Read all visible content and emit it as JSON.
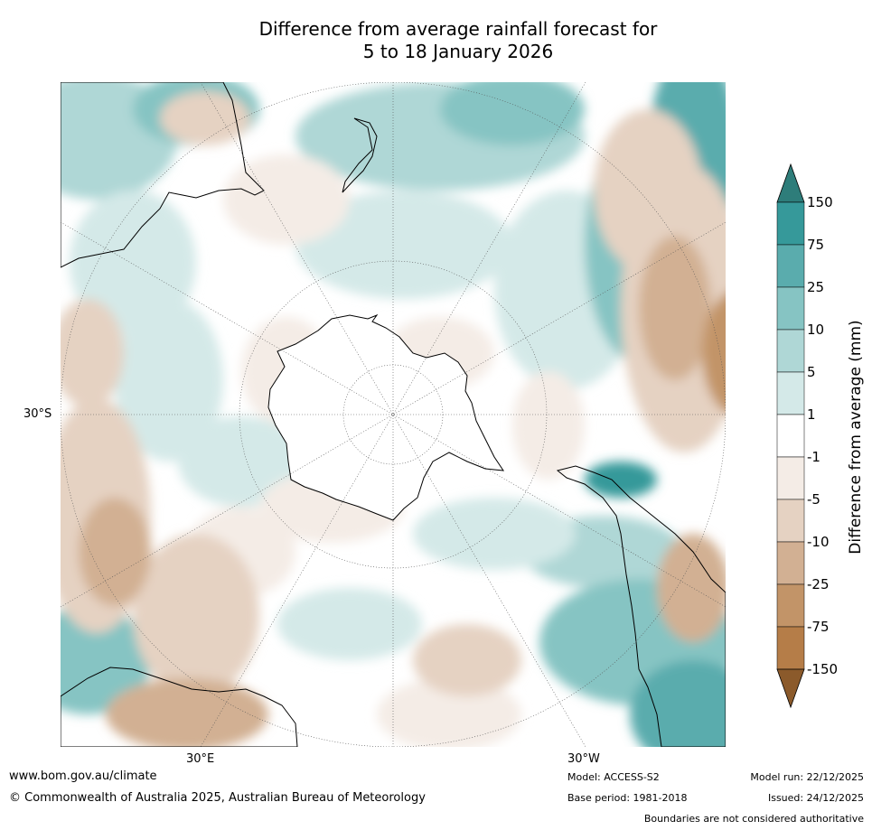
{
  "title": {
    "line1": "Difference from average rainfall forecast for",
    "line2": "5 to 18 January 2026"
  },
  "map": {
    "lat_label": "30°S",
    "lon_labels": [
      "30°E",
      "30°W"
    ]
  },
  "legend": {
    "title": "Difference from average (mm)",
    "ticks": [
      "150",
      "75",
      "25",
      "10",
      "5",
      "1",
      "-1",
      "-5",
      "-10",
      "-25",
      "-75",
      "-150"
    ],
    "colors": [
      "#2e7d7a",
      "#36999a",
      "#5aacad",
      "#86c4c3",
      "#afd7d6",
      "#d4e9e8",
      "#ffffff",
      "#f4ece6",
      "#e5d2c2",
      "#d2b093",
      "#c29468",
      "#b57d48",
      "#a66a34",
      "#8b5a2b"
    ]
  },
  "colors": {
    "land_outline": "#000000",
    "grid": "#555555"
  },
  "footer": {
    "url": "www.bom.gov.au/climate",
    "copyright": "© Commonwealth of Australia 2025, Australian Bureau of Meteorology",
    "model": "Model: ACCESS-S2",
    "base_period": "Base period: 1981-2018",
    "model_run": "Model run: 22/12/2025",
    "issued": "Issued: 24/12/2025",
    "disclaimer": "Boundaries are not considered authoritative"
  }
}
